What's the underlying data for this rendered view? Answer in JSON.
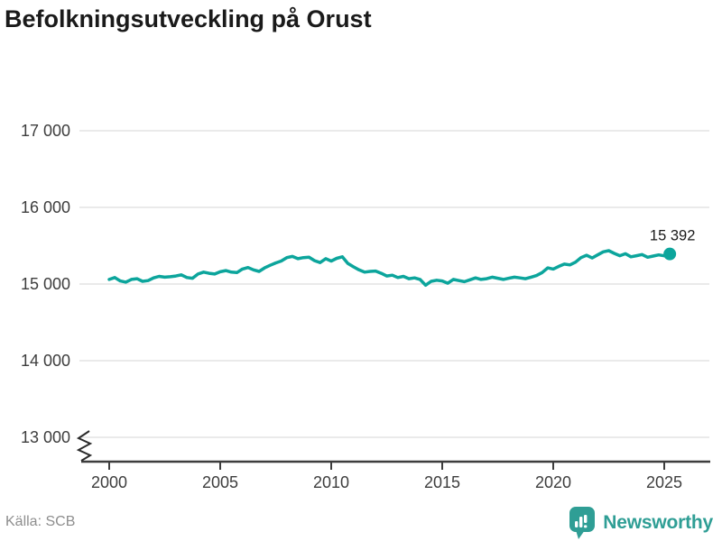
{
  "title": "Befolkningsutveckling på Orust",
  "source": "Källa: SCB",
  "branding": {
    "name": "Newsworthy"
  },
  "colors": {
    "line": "#0ca59c",
    "marker": "#0ca59c",
    "grid": "#e4e4e4",
    "axis": "#3d3d3d",
    "tick_text": "#3d3d3d",
    "end_label_text": "#1a1a1a",
    "title_text": "#1a1a1a",
    "source_text": "#8e8e8e",
    "brand_teal": "#2f9e95"
  },
  "chart_data": {
    "type": "line",
    "title": "Befolkningsutveckling på Orust",
    "xlabel": "",
    "ylabel": "",
    "x_ticks": [
      2000,
      2005,
      2010,
      2015,
      2020,
      2025
    ],
    "y_ticks": [
      "17 000",
      "16 000",
      "15 000",
      "14 000",
      "13 000"
    ],
    "y_tick_values": [
      17000,
      16000,
      15000,
      14000,
      13000
    ],
    "ylim": [
      13000,
      17000
    ],
    "xlim": [
      2000,
      2025.25
    ],
    "axis_break": true,
    "grid": "horizontal",
    "legend": "none",
    "end_label": "15 392",
    "end_value": 15392,
    "series": [
      {
        "name": "Befolkning Orust (kvartal)",
        "points": [
          [
            2000,
            15060
          ],
          [
            2000.25,
            15085
          ],
          [
            2000.5,
            15040
          ],
          [
            2000.75,
            15025
          ],
          [
            2001,
            15060
          ],
          [
            2001.25,
            15070
          ],
          [
            2001.5,
            15035
          ],
          [
            2001.75,
            15045
          ],
          [
            2002,
            15080
          ],
          [
            2002.25,
            15100
          ],
          [
            2002.5,
            15090
          ],
          [
            2002.75,
            15095
          ],
          [
            2003,
            15105
          ],
          [
            2003.25,
            15120
          ],
          [
            2003.5,
            15085
          ],
          [
            2003.75,
            15075
          ],
          [
            2004,
            15130
          ],
          [
            2004.25,
            15155
          ],
          [
            2004.5,
            15140
          ],
          [
            2004.75,
            15130
          ],
          [
            2005,
            15160
          ],
          [
            2005.25,
            15175
          ],
          [
            2005.5,
            15155
          ],
          [
            2005.75,
            15150
          ],
          [
            2006,
            15195
          ],
          [
            2006.25,
            15215
          ],
          [
            2006.5,
            15185
          ],
          [
            2006.75,
            15165
          ],
          [
            2007,
            15210
          ],
          [
            2007.25,
            15245
          ],
          [
            2007.5,
            15275
          ],
          [
            2007.75,
            15300
          ],
          [
            2008,
            15345
          ],
          [
            2008.25,
            15360
          ],
          [
            2008.5,
            15330
          ],
          [
            2008.75,
            15345
          ],
          [
            2009,
            15350
          ],
          [
            2009.25,
            15305
          ],
          [
            2009.5,
            15280
          ],
          [
            2009.75,
            15330
          ],
          [
            2010,
            15300
          ],
          [
            2010.25,
            15335
          ],
          [
            2010.5,
            15355
          ],
          [
            2010.75,
            15270
          ],
          [
            2011,
            15225
          ],
          [
            2011.25,
            15185
          ],
          [
            2011.5,
            15155
          ],
          [
            2011.75,
            15165
          ],
          [
            2012,
            15170
          ],
          [
            2012.25,
            15140
          ],
          [
            2012.5,
            15105
          ],
          [
            2012.75,
            15115
          ],
          [
            2013,
            15085
          ],
          [
            2013.25,
            15100
          ],
          [
            2013.5,
            15070
          ],
          [
            2013.75,
            15080
          ],
          [
            2014,
            15060
          ],
          [
            2014.25,
            14985
          ],
          [
            2014.5,
            15035
          ],
          [
            2014.75,
            15050
          ],
          [
            2015,
            15040
          ],
          [
            2015.25,
            15010
          ],
          [
            2015.5,
            15060
          ],
          [
            2015.75,
            15045
          ],
          [
            2016,
            15030
          ],
          [
            2016.25,
            15055
          ],
          [
            2016.5,
            15080
          ],
          [
            2016.75,
            15060
          ],
          [
            2017,
            15070
          ],
          [
            2017.25,
            15090
          ],
          [
            2017.5,
            15075
          ],
          [
            2017.75,
            15060
          ],
          [
            2018,
            15075
          ],
          [
            2018.25,
            15090
          ],
          [
            2018.5,
            15080
          ],
          [
            2018.75,
            15070
          ],
          [
            2019,
            15090
          ],
          [
            2019.25,
            15110
          ],
          [
            2019.5,
            15150
          ],
          [
            2019.75,
            15210
          ],
          [
            2020,
            15195
          ],
          [
            2020.25,
            15230
          ],
          [
            2020.5,
            15260
          ],
          [
            2020.75,
            15250
          ],
          [
            2021,
            15285
          ],
          [
            2021.25,
            15345
          ],
          [
            2021.5,
            15375
          ],
          [
            2021.75,
            15340
          ],
          [
            2022,
            15380
          ],
          [
            2022.25,
            15420
          ],
          [
            2022.5,
            15435
          ],
          [
            2022.75,
            15400
          ],
          [
            2023,
            15370
          ],
          [
            2023.25,
            15395
          ],
          [
            2023.5,
            15355
          ],
          [
            2023.75,
            15370
          ],
          [
            2024,
            15385
          ],
          [
            2024.25,
            15350
          ],
          [
            2024.5,
            15365
          ],
          [
            2024.75,
            15380
          ],
          [
            2025,
            15368
          ],
          [
            2025.25,
            15392
          ]
        ]
      }
    ]
  }
}
